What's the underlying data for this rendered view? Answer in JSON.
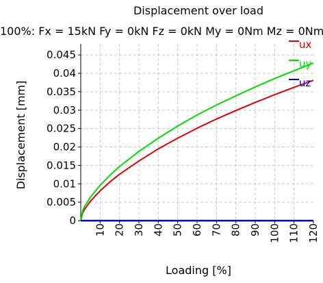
{
  "chart_data": {
    "type": "line",
    "title": "Displacement over load",
    "subtitle": "100%: Fx = 15kN Fy = 0kN Fz = 0kN My = 0Nm Mz = 0Nm",
    "xlabel": "Loading [%]",
    "ylabel": "Displacement [mm]",
    "xlim": [
      0,
      120
    ],
    "ylim": [
      0,
      0.048
    ],
    "xticks": [
      "10",
      "20",
      "30",
      "40",
      "50",
      "60",
      "70",
      "80",
      "90",
      "100",
      "110",
      "120"
    ],
    "yticks": [
      "0",
      "0.005",
      "0.01",
      "0.015",
      "0.02",
      "0.025",
      "0.03",
      "0.035",
      "0.04",
      "0.045"
    ],
    "grid": true,
    "legend_position": "top-right",
    "x": [
      0,
      1,
      2,
      5,
      10,
      15,
      20,
      30,
      40,
      50,
      60,
      70,
      80,
      90,
      100,
      110,
      120
    ],
    "series": [
      {
        "name": "ux",
        "color": "#dd0000",
        "values": [
          0,
          0.0021,
          0.0031,
          0.0053,
          0.0081,
          0.0105,
          0.0126,
          0.0162,
          0.0195,
          0.0224,
          0.0251,
          0.0276,
          0.0299,
          0.0321,
          0.0342,
          0.0362,
          0.0381
        ]
      },
      {
        "name": "uy",
        "color": "#00dd00",
        "values": [
          0,
          0.0027,
          0.0039,
          0.0064,
          0.0096,
          0.0123,
          0.0147,
          0.0188,
          0.0224,
          0.0257,
          0.0287,
          0.0314,
          0.0339,
          0.0363,
          0.0386,
          0.0407,
          0.0428
        ]
      },
      {
        "name": "uz",
        "color": "#0000cc",
        "values": [
          0,
          0,
          0,
          0,
          0,
          0,
          0,
          0,
          0,
          0,
          0,
          0,
          0,
          0,
          0,
          0,
          0
        ]
      }
    ]
  }
}
